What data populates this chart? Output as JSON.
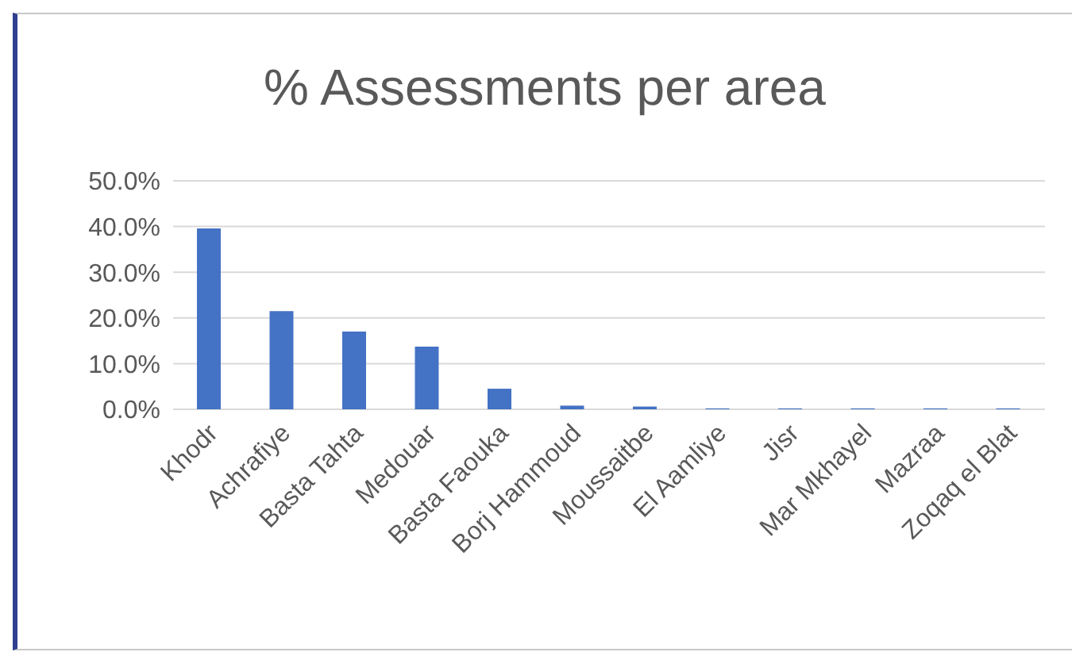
{
  "chart_data": {
    "type": "bar",
    "title": "% Assessments per area",
    "categories": [
      "Khodr",
      "Achrafiye",
      "Basta Tahta",
      "Medouar",
      "Basta Faouka",
      "Borj Hammoud",
      "Moussaitbe",
      "El Aamliye",
      "Jisr",
      "Mar Mkhayel",
      "Mazraa",
      "Zoqaq el Blat"
    ],
    "values": [
      39.6,
      21.5,
      17.0,
      13.7,
      4.5,
      0.8,
      0.6,
      0.2,
      0.2,
      0.2,
      0.2,
      0.2
    ],
    "color": "#4472c4",
    "ylim": [
      0,
      50
    ],
    "yticks": [
      {
        "value": 0,
        "label": "0.0%"
      },
      {
        "value": 10,
        "label": "10.0%"
      },
      {
        "value": 20,
        "label": "20.0%"
      },
      {
        "value": 30,
        "label": "30.0%"
      },
      {
        "value": 40,
        "label": "40.0%"
      },
      {
        "value": 50,
        "label": "50.0%"
      }
    ],
    "grid": "y"
  }
}
